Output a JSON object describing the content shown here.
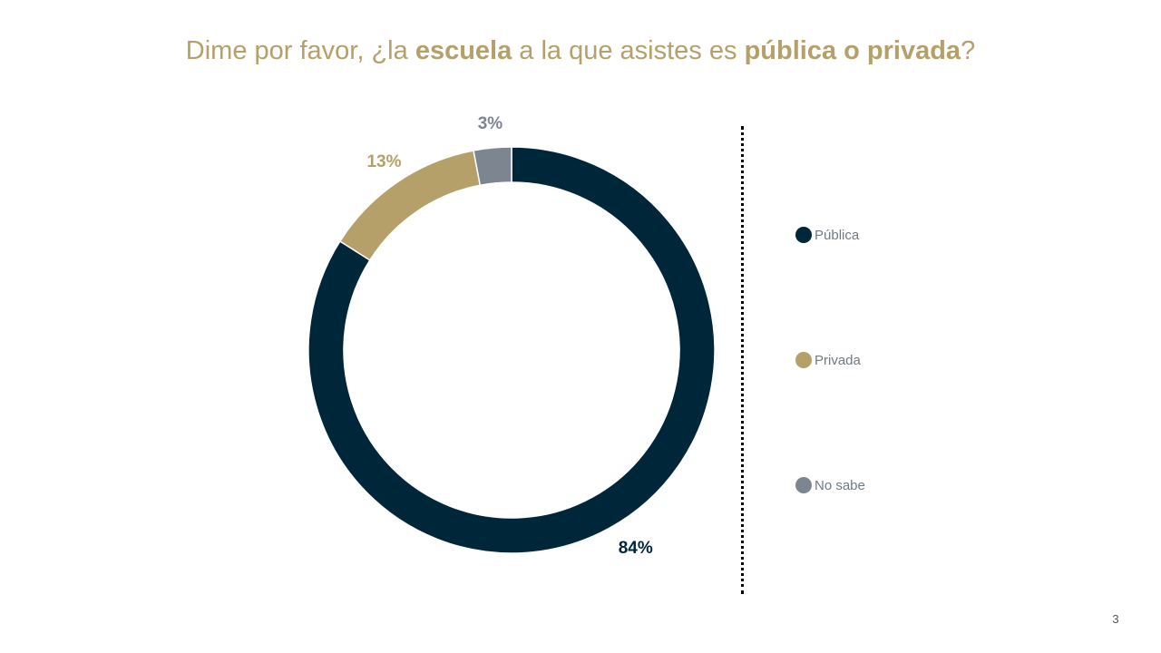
{
  "title": {
    "part1": "Dime por favor, ¿la ",
    "bold1": "escuela",
    "part2": " a la que asistes es ",
    "bold2": "pública o privada",
    "part3": "?"
  },
  "chart_data": {
    "type": "pie",
    "style": "donut",
    "categories": [
      "Pública",
      "Privada",
      "No sabe"
    ],
    "values": [
      84,
      13,
      3
    ],
    "labels": [
      "84%",
      "13%",
      "3%"
    ],
    "colors": [
      "#00263A",
      "#B5A06A",
      "#7D8590"
    ],
    "legend_placement": "right"
  },
  "legend": [
    {
      "label": "Pública",
      "color": "#00263A"
    },
    {
      "label": "Privada",
      "color": "#B5A06A"
    },
    {
      "label": "No sabe",
      "color": "#7D8590"
    }
  ],
  "page_number": "3"
}
